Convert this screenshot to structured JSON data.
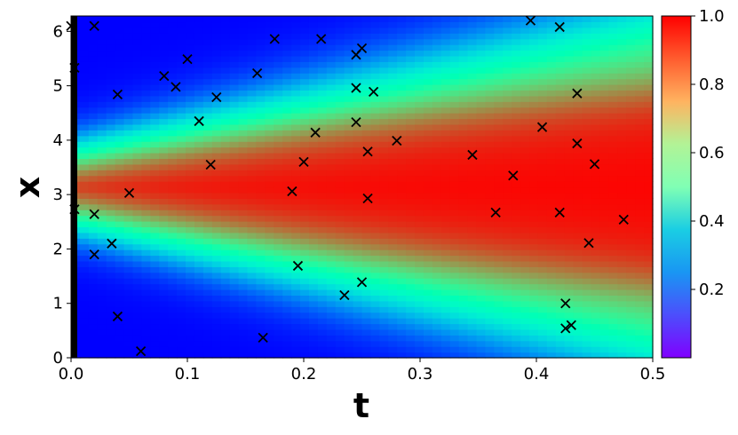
{
  "chart_data": {
    "type": "heatmap",
    "title": "",
    "xlabel": "t",
    "ylabel": "x",
    "xlim": [
      0,
      0.5
    ],
    "ylim": [
      0,
      6.283
    ],
    "x_ticks": [
      "0.0",
      "0.1",
      "0.2",
      "0.3",
      "0.4",
      "0.5"
    ],
    "y_ticks": [
      "0",
      "1",
      "2",
      "3",
      "4",
      "5",
      "6"
    ],
    "colormap": "rainbow",
    "colorbar": {
      "range": [
        0,
        1
      ],
      "ticks": [
        "0.2",
        "0.4",
        "0.6",
        "0.8",
        "1.0"
      ],
      "tick_values": [
        0.2,
        0.4,
        0.6,
        0.8,
        1.0
      ]
    },
    "marker_color": "#000000",
    "points": [
      {
        "t": 0.0,
        "x": 6.1
      },
      {
        "t": 0.003,
        "x": 5.33
      },
      {
        "t": 0.003,
        "x": 2.73
      },
      {
        "t": 0.02,
        "x": 6.1
      },
      {
        "t": 0.02,
        "x": 2.64
      },
      {
        "t": 0.02,
        "x": 1.9
      },
      {
        "t": 0.035,
        "x": 2.1
      },
      {
        "t": 0.04,
        "x": 4.84
      },
      {
        "t": 0.04,
        "x": 0.76
      },
      {
        "t": 0.05,
        "x": 3.03
      },
      {
        "t": 0.06,
        "x": 0.12
      },
      {
        "t": 0.08,
        "x": 5.18
      },
      {
        "t": 0.09,
        "x": 4.98
      },
      {
        "t": 0.1,
        "x": 5.49
      },
      {
        "t": 0.11,
        "x": 4.35
      },
      {
        "t": 0.12,
        "x": 3.55
      },
      {
        "t": 0.125,
        "x": 4.79
      },
      {
        "t": 0.16,
        "x": 5.23
      },
      {
        "t": 0.165,
        "x": 0.37
      },
      {
        "t": 0.175,
        "x": 5.86
      },
      {
        "t": 0.19,
        "x": 3.06
      },
      {
        "t": 0.195,
        "x": 1.69
      },
      {
        "t": 0.2,
        "x": 3.6
      },
      {
        "t": 0.21,
        "x": 4.14
      },
      {
        "t": 0.215,
        "x": 5.86
      },
      {
        "t": 0.235,
        "x": 1.15
      },
      {
        "t": 0.245,
        "x": 5.57
      },
      {
        "t": 0.245,
        "x": 4.96
      },
      {
        "t": 0.245,
        "x": 4.33
      },
      {
        "t": 0.25,
        "x": 5.69
      },
      {
        "t": 0.25,
        "x": 1.39
      },
      {
        "t": 0.255,
        "x": 3.79
      },
      {
        "t": 0.255,
        "x": 2.93
      },
      {
        "t": 0.26,
        "x": 4.89
      },
      {
        "t": 0.28,
        "x": 3.99
      },
      {
        "t": 0.345,
        "x": 3.73
      },
      {
        "t": 0.365,
        "x": 2.67
      },
      {
        "t": 0.38,
        "x": 3.35
      },
      {
        "t": 0.395,
        "x": 6.2
      },
      {
        "t": 0.405,
        "x": 4.24
      },
      {
        "t": 0.42,
        "x": 6.08
      },
      {
        "t": 0.42,
        "x": 2.67
      },
      {
        "t": 0.425,
        "x": 1.0
      },
      {
        "t": 0.425,
        "x": 0.54
      },
      {
        "t": 0.43,
        "x": 0.6
      },
      {
        "t": 0.435,
        "x": 4.86
      },
      {
        "t": 0.435,
        "x": 3.94
      },
      {
        "t": 0.445,
        "x": 2.11
      },
      {
        "t": 0.45,
        "x": 3.56
      },
      {
        "t": 0.475,
        "x": 2.54
      }
    ]
  }
}
